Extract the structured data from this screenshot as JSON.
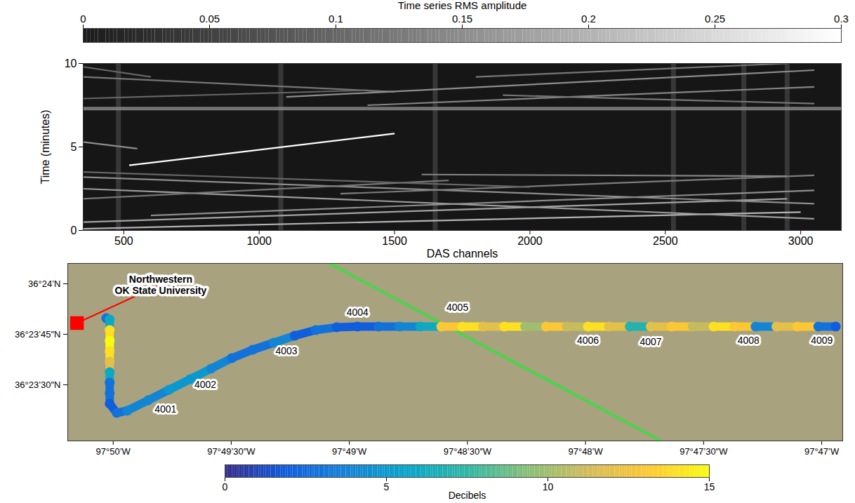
{
  "chart_data": [
    {
      "type": "waterfall",
      "x_label": "DAS channels",
      "y_label": "Time (minutes)",
      "xlim": [
        350,
        3150
      ],
      "xticks": [
        500,
        1000,
        1500,
        2000,
        2500,
        3000
      ],
      "ylim": [
        0,
        10
      ],
      "yticks": [
        0,
        5,
        10
      ],
      "colorbar": {
        "title": "Time series RMS amplitude",
        "range": [
          0,
          0.3
        ],
        "ticks": [
          0,
          0.05,
          0.1,
          0.15,
          0.2,
          0.25,
          0.3
        ]
      },
      "traces": [
        {
          "channels": [
            520,
            1500
          ],
          "times": [
            3.9,
            5.8
          ],
          "rms": 0.3
        },
        {
          "channels": [
            350,
            3000
          ],
          "times": [
            0.1,
            1.1
          ],
          "rms": 0.2
        },
        {
          "channels": [
            350,
            2950
          ],
          "times": [
            0.5,
            1.9
          ],
          "rms": 0.18
        },
        {
          "channels": [
            600,
            3050
          ],
          "times": [
            0.9,
            2.4
          ],
          "rms": 0.15
        },
        {
          "channels": [
            350,
            3050
          ],
          "times": [
            2.5,
            0.7
          ],
          "rms": 0.17
        },
        {
          "channels": [
            350,
            3050
          ],
          "times": [
            3.2,
            1.6
          ],
          "rms": 0.15
        },
        {
          "channels": [
            350,
            1700
          ],
          "times": [
            1.9,
            3.0
          ],
          "rms": 0.12
        },
        {
          "channels": [
            1300,
            3050
          ],
          "times": [
            2.2,
            3.3
          ],
          "rms": 0.13
        },
        {
          "channels": [
            350,
            2000
          ],
          "times": [
            3.5,
            2.6
          ],
          "rms": 0.1
        },
        {
          "channels": [
            1600,
            2950
          ],
          "times": [
            3.35,
            3.25
          ],
          "rms": 0.14
        },
        {
          "channels": [
            350,
            550
          ],
          "times": [
            5.3,
            4.9
          ],
          "rms": 0.15
        },
        {
          "channels": [
            350,
            1500
          ],
          "times": [
            9.2,
            8.3
          ],
          "rms": 0.12
        },
        {
          "channels": [
            1100,
            3050
          ],
          "times": [
            8.0,
            9.6
          ],
          "rms": 0.15
        },
        {
          "channels": [
            1400,
            3050
          ],
          "times": [
            7.5,
            8.6
          ],
          "rms": 0.14
        },
        {
          "channels": [
            1800,
            2950
          ],
          "times": [
            9.2,
            10
          ],
          "rms": 0.12
        },
        {
          "channels": [
            350,
            1400
          ],
          "times": [
            7.9,
            8.4
          ],
          "rms": 0.1
        },
        {
          "channels": [
            1900,
            3050
          ],
          "times": [
            8.1,
            7.6
          ],
          "rms": 0.12
        },
        {
          "channels": [
            350,
            600
          ],
          "times": [
            9.8,
            9.2
          ],
          "rms": 0.1
        }
      ],
      "noisy_channels": {
        "channels": [
          480,
          1080,
          1650,
          2530,
          2790,
          2950
        ],
        "rms": 0.07
      },
      "noisy_times": {
        "times": [
          7.3
        ],
        "rms": 0.14
      }
    },
    {
      "type": "map",
      "xlim": [
        -97.83654,
        -97.78185
      ],
      "xticks": [
        {
          "value": -97.833333,
          "label": "97°50’W"
        },
        {
          "value": -97.825,
          "label": "97°49’30″W"
        },
        {
          "value": -97.816667,
          "label": "97°49’W"
        },
        {
          "value": -97.808333,
          "label": "97°48’30″W"
        },
        {
          "value": -97.8,
          "label": "97°48’W"
        },
        {
          "value": -97.791667,
          "label": "97°47’30″W"
        },
        {
          "value": -97.783333,
          "label": "97°47’W"
        }
      ],
      "ylim": [
        36.38704,
        36.40168
      ],
      "yticks": [
        {
          "value": 36.391667,
          "label": "36°23’30″N"
        },
        {
          "value": 36.395833,
          "label": "36°23’45″N"
        },
        {
          "value": 36.4,
          "label": "36°24’N"
        }
      ],
      "colorbar": {
        "title": "Decibels",
        "range": [
          0,
          15
        ],
        "ticks": [
          0,
          5,
          10,
          15
        ]
      },
      "route": {
        "lon": [
          -97.83382,
          -97.83358,
          -97.83358,
          -97.83358,
          -97.83358,
          -97.83358,
          -97.83358,
          -97.83358,
          -97.83358,
          -97.83358,
          -97.83308,
          -97.83234,
          -97.83087,
          -97.82939,
          -97.82791,
          -97.82643,
          -97.82496,
          -97.82348,
          -97.822,
          -97.82052,
          -97.81904,
          -97.81756,
          -97.81609,
          -97.81461,
          -97.81313,
          -97.81165,
          -97.81018,
          -97.8087,
          -97.80722,
          -97.80574,
          -97.80426,
          -97.80279,
          -97.80131,
          -97.79983,
          -97.79835,
          -97.79687,
          -97.7954,
          -97.79392,
          -97.79244,
          -97.79096,
          -97.78948,
          -97.788,
          -97.78653,
          -97.78505,
          -97.78357,
          -97.78234
        ],
        "lat": [
          36.39716,
          36.39705,
          36.39618,
          36.39531,
          36.39444,
          36.39358,
          36.39271,
          36.39184,
          36.39097,
          36.3901,
          36.38935,
          36.38953,
          36.39039,
          36.39126,
          36.39213,
          36.393,
          36.39387,
          36.39456,
          36.39514,
          36.39572,
          36.39618,
          36.39641,
          36.39647,
          36.39647,
          36.39647,
          36.39647,
          36.39647,
          36.39647,
          36.39647,
          36.39647,
          36.39647,
          36.39647,
          36.39647,
          36.39647,
          36.39647,
          36.39647,
          36.39647,
          36.39647,
          36.39647,
          36.39647,
          36.39647,
          36.39647,
          36.39647,
          36.39647,
          36.39647,
          36.39647
        ],
        "decibels": [
          3,
          6,
          14,
          15,
          14,
          12,
          6,
          3,
          3,
          2,
          3,
          4,
          4,
          5,
          5,
          4,
          3,
          3,
          4,
          2,
          3,
          2,
          2,
          3,
          4,
          6,
          13,
          14,
          12,
          14,
          10,
          13,
          11,
          14,
          12,
          7,
          12,
          13,
          11,
          14,
          13,
          4,
          12,
          13,
          3,
          2
        ]
      },
      "road_labels": [
        {
          "text": "4001",
          "lon": -97.82964,
          "lat": 36.38964
        },
        {
          "text": "4002",
          "lon": -97.82683,
          "lat": 36.39167
        },
        {
          "text": "4003",
          "lon": -97.82111,
          "lat": 36.39444
        },
        {
          "text": "4004",
          "lon": -97.81609,
          "lat": 36.39763
        },
        {
          "text": "4005",
          "lon": -97.80904,
          "lat": 36.39803
        },
        {
          "text": "4006",
          "lon": -97.79983,
          "lat": 36.39531
        },
        {
          "text": "4007",
          "lon": -97.7954,
          "lat": 36.3952
        },
        {
          "text": "4008",
          "lon": -97.7885,
          "lat": 36.39531
        },
        {
          "text": "4009",
          "lon": -97.78332,
          "lat": 36.39531
        }
      ],
      "annotation": {
        "text": "Northwestern OK State University",
        "lon": -97.82998,
        "lat": 36.39994,
        "marker_lon": -97.83589,
        "marker_lat": 36.39676,
        "color": "#ff0000"
      },
      "line": {
        "lon": [
          -97.81806,
          -97.79466
        ],
        "lat": [
          36.40168,
          36.38704
        ],
        "color": "#4cd44c"
      }
    }
  ]
}
